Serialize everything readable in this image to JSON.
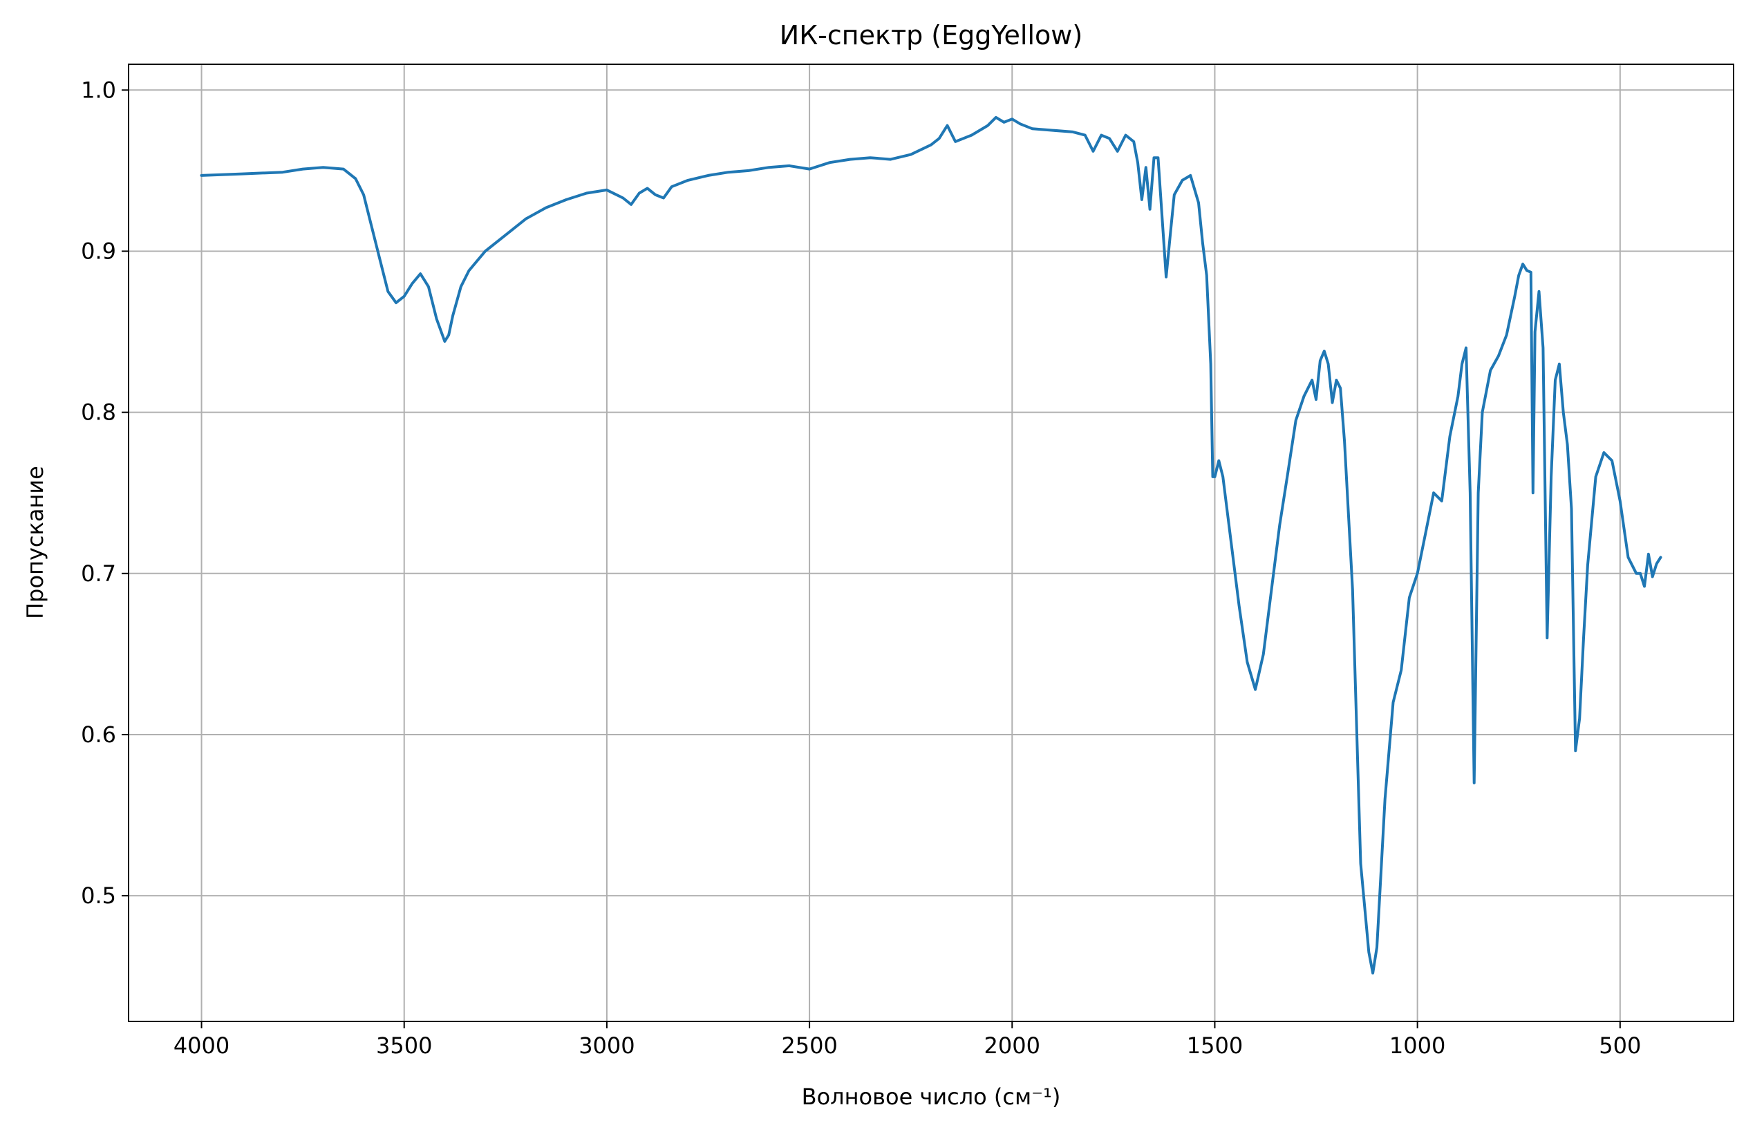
{
  "chart_data": {
    "type": "line",
    "title": "ИК-спектр (EggYellow)",
    "xlabel": "Волновое число (см⁻¹)",
    "ylabel": "Пропускание",
    "x_reversed": true,
    "xlim": [
      4180,
      220
    ],
    "ylim": [
      0.422,
      1.016
    ],
    "xticks": [
      4000,
      3500,
      3000,
      2500,
      2000,
      1500,
      1000,
      500
    ],
    "yticks": [
      0.5,
      0.6,
      0.7,
      0.8,
      0.9,
      1.0
    ],
    "xtick_labels": [
      "4000",
      "3500",
      "3000",
      "2500",
      "2000",
      "1500",
      "1000",
      "500"
    ],
    "ytick_labels": [
      "0.5",
      "0.6",
      "0.7",
      "0.8",
      "0.9",
      "1.0"
    ],
    "grid": true,
    "legend": "none",
    "line_color": "#1f77b4",
    "series": [
      {
        "x": [
          4000,
          3900,
          3800,
          3750,
          3700,
          3650,
          3620,
          3600,
          3580,
          3560,
          3540,
          3520,
          3500,
          3480,
          3460,
          3440,
          3420,
          3400,
          3390,
          3380,
          3360,
          3340,
          3300,
          3250,
          3200,
          3150,
          3100,
          3050,
          3000,
          2960,
          2940,
          2920,
          2900,
          2880,
          2860,
          2840,
          2800,
          2750,
          2700,
          2650,
          2600,
          2550,
          2500,
          2450,
          2400,
          2350,
          2300,
          2250,
          2200,
          2180,
          2160,
          2140,
          2100,
          2060,
          2040,
          2020,
          2000,
          1980,
          1950,
          1900,
          1850,
          1820,
          1800,
          1780,
          1760,
          1740,
          1720,
          1700,
          1690,
          1680,
          1670,
          1660,
          1650,
          1640,
          1620,
          1610,
          1600,
          1580,
          1560,
          1540,
          1530,
          1520,
          1510,
          1505,
          1500,
          1490,
          1480,
          1460,
          1440,
          1420,
          1400,
          1380,
          1360,
          1340,
          1320,
          1300,
          1280,
          1260,
          1250,
          1240,
          1230,
          1220,
          1210,
          1200,
          1190,
          1180,
          1160,
          1140,
          1120,
          1110,
          1100,
          1080,
          1060,
          1040,
          1020,
          1000,
          980,
          960,
          940,
          920,
          900,
          890,
          880,
          870,
          860,
          850,
          840,
          820,
          800,
          780,
          760,
          750,
          740,
          730,
          720,
          715,
          710,
          700,
          690,
          680,
          670,
          660,
          650,
          640,
          630,
          620,
          610,
          600,
          590,
          580,
          560,
          540,
          520,
          500,
          480,
          460,
          450,
          440,
          430,
          420,
          410,
          400
        ],
        "y": [
          0.947,
          0.948,
          0.949,
          0.951,
          0.952,
          0.951,
          0.945,
          0.935,
          0.915,
          0.895,
          0.875,
          0.868,
          0.872,
          0.88,
          0.886,
          0.878,
          0.858,
          0.844,
          0.848,
          0.86,
          0.878,
          0.888,
          0.9,
          0.91,
          0.92,
          0.927,
          0.932,
          0.936,
          0.938,
          0.933,
          0.929,
          0.936,
          0.939,
          0.935,
          0.933,
          0.94,
          0.944,
          0.947,
          0.949,
          0.95,
          0.952,
          0.953,
          0.951,
          0.955,
          0.957,
          0.958,
          0.957,
          0.96,
          0.966,
          0.97,
          0.978,
          0.968,
          0.972,
          0.978,
          0.983,
          0.98,
          0.982,
          0.979,
          0.976,
          0.975,
          0.974,
          0.972,
          0.962,
          0.972,
          0.97,
          0.962,
          0.972,
          0.968,
          0.955,
          0.932,
          0.952,
          0.926,
          0.958,
          0.958,
          0.884,
          0.91,
          0.935,
          0.944,
          0.947,
          0.93,
          0.905,
          0.885,
          0.83,
          0.76,
          0.76,
          0.77,
          0.76,
          0.72,
          0.68,
          0.645,
          0.628,
          0.65,
          0.69,
          0.73,
          0.762,
          0.795,
          0.81,
          0.82,
          0.808,
          0.832,
          0.838,
          0.83,
          0.806,
          0.82,
          0.815,
          0.782,
          0.69,
          0.52,
          0.465,
          0.452,
          0.468,
          0.56,
          0.62,
          0.64,
          0.685,
          0.7,
          0.725,
          0.75,
          0.745,
          0.785,
          0.81,
          0.83,
          0.84,
          0.75,
          0.57,
          0.75,
          0.8,
          0.826,
          0.835,
          0.848,
          0.872,
          0.885,
          0.892,
          0.888,
          0.887,
          0.75,
          0.85,
          0.875,
          0.84,
          0.66,
          0.76,
          0.82,
          0.83,
          0.8,
          0.78,
          0.74,
          0.59,
          0.61,
          0.66,
          0.705,
          0.76,
          0.775,
          0.77,
          0.745,
          0.71,
          0.7,
          0.7,
          0.692,
          0.712,
          0.698,
          0.706,
          0.71
        ]
      }
    ]
  }
}
